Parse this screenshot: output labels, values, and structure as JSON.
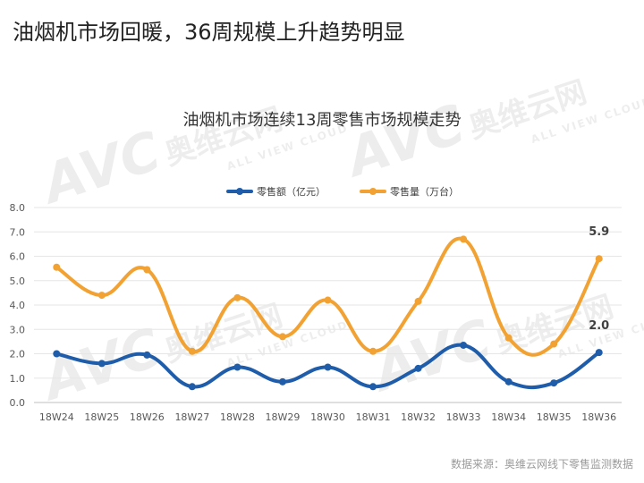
{
  "headline": "油烟机市场回暖，36周规模上升趋势明显",
  "source": "数据来源：奥维云网线下零售监测数据",
  "watermark": {
    "brand": "AVC",
    "cn": "奥维云网",
    "en": "ALL VIEW CLOUD"
  },
  "colors": {
    "series1": "#1F5DAA",
    "series2": "#F2A233",
    "grid": "#E6E6E6"
  },
  "chart_data": {
    "type": "line",
    "title": "油烟机市场连续13周零售市场规模走势",
    "categories": [
      "18W24",
      "18W25",
      "18W26",
      "18W27",
      "18W28",
      "18W29",
      "18W30",
      "18W31",
      "18W32",
      "18W33",
      "18W34",
      "18W35",
      "18W36"
    ],
    "series": [
      {
        "name": "零售额（亿元）",
        "values": [
          2.0,
          1.6,
          1.95,
          0.65,
          1.45,
          0.85,
          1.45,
          0.65,
          1.4,
          2.35,
          0.85,
          0.8,
          2.05
        ]
      },
      {
        "name": "零售量（万台）",
        "values": [
          5.55,
          4.4,
          5.45,
          2.1,
          4.3,
          2.7,
          4.2,
          2.1,
          4.15,
          6.7,
          2.65,
          2.4,
          5.9
        ]
      }
    ],
    "ylim": [
      0,
      8
    ],
    "yticks": [
      "0.0",
      "1.0",
      "2.0",
      "3.0",
      "4.0",
      "5.0",
      "6.0",
      "7.0",
      "8.0"
    ],
    "annotations": [
      {
        "series": 0,
        "index": 12,
        "label": "2.0"
      },
      {
        "series": 1,
        "index": 12,
        "label": "5.9"
      }
    ],
    "legend": "top-center",
    "grid": true
  }
}
